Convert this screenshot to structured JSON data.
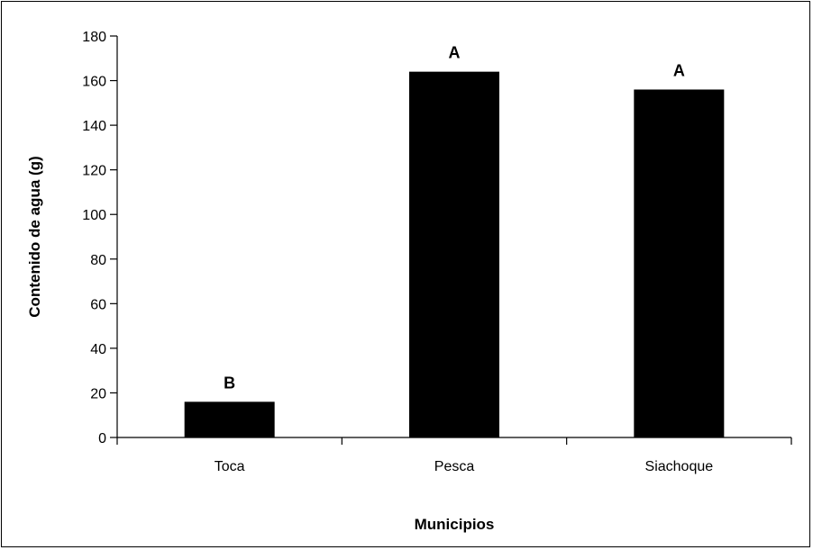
{
  "chart_data": {
    "type": "bar",
    "categories": [
      "Toca",
      "Pesca",
      "Siachoque"
    ],
    "values": [
      16,
      164,
      156
    ],
    "annotations": [
      "B",
      "A",
      "A"
    ],
    "xlabel": "Municipios",
    "ylabel": "Contenido de agua (g)",
    "ylim": [
      0,
      180
    ],
    "yticks": [
      0,
      20,
      40,
      60,
      80,
      100,
      120,
      140,
      160,
      180
    ],
    "grid": false,
    "bar_color": "#000000"
  }
}
